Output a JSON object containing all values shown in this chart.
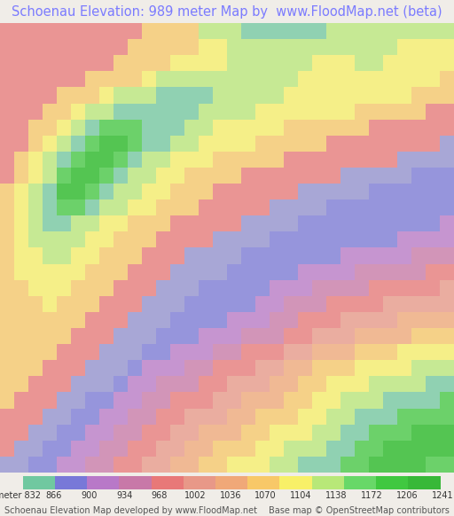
{
  "title": "Schoenau Elevation: 989 meter Map by  www.FloodMap.net (beta)",
  "title_color": "#7b7bff",
  "title_fontsize": 10.5,
  "bg_color": "#f0ede8",
  "colorbar_labels": [
    "meter 832",
    "866",
    "900",
    "934",
    "968",
    "1002",
    "1036",
    "1070",
    "1104",
    "1138",
    "1172",
    "1206",
    "1241"
  ],
  "colorbar_colors": [
    "#70c8a0",
    "#7878d8",
    "#b878c8",
    "#c878a8",
    "#e87878",
    "#e89888",
    "#f0a878",
    "#f8c868",
    "#f8f068",
    "#b8e878",
    "#68d868",
    "#40c840",
    "#38b838"
  ],
  "footer_left": "Schoenau Elevation Map developed by www.FloodMap.net",
  "footer_right": "Base map © OpenStreetMap contributors",
  "footer_fontsize": 7,
  "colorbar_label_fontsize": 7,
  "elevation_grid": [
    [
      4,
      4,
      4,
      4,
      4,
      4,
      4,
      4,
      4,
      4,
      7,
      7,
      7,
      7,
      9,
      9,
      9,
      10,
      10,
      10,
      10,
      10,
      10,
      9,
      9,
      9,
      9,
      9,
      9,
      9,
      9,
      9
    ],
    [
      4,
      4,
      4,
      4,
      4,
      4,
      4,
      4,
      4,
      7,
      7,
      7,
      7,
      7,
      8,
      8,
      9,
      9,
      9,
      9,
      9,
      9,
      9,
      9,
      9,
      9,
      9,
      9,
      8,
      8,
      8,
      8
    ],
    [
      4,
      4,
      4,
      4,
      4,
      4,
      4,
      4,
      7,
      7,
      7,
      7,
      8,
      8,
      8,
      8,
      9,
      9,
      9,
      9,
      9,
      9,
      8,
      8,
      8,
      9,
      9,
      8,
      8,
      8,
      8,
      8
    ],
    [
      4,
      4,
      4,
      4,
      4,
      4,
      7,
      7,
      7,
      7,
      8,
      9,
      9,
      9,
      9,
      9,
      9,
      9,
      9,
      9,
      9,
      8,
      8,
      8,
      8,
      8,
      8,
      8,
      8,
      8,
      8,
      7
    ],
    [
      4,
      4,
      4,
      4,
      7,
      7,
      7,
      8,
      9,
      9,
      9,
      10,
      10,
      10,
      10,
      9,
      9,
      9,
      9,
      9,
      8,
      8,
      8,
      8,
      8,
      8,
      8,
      8,
      8,
      7,
      7,
      7
    ],
    [
      4,
      4,
      4,
      7,
      7,
      8,
      9,
      9,
      10,
      10,
      10,
      10,
      10,
      10,
      9,
      9,
      9,
      9,
      8,
      8,
      8,
      8,
      8,
      8,
      8,
      7,
      7,
      7,
      7,
      7,
      4,
      4
    ],
    [
      4,
      4,
      7,
      7,
      8,
      9,
      10,
      11,
      11,
      11,
      10,
      10,
      10,
      9,
      9,
      8,
      8,
      8,
      8,
      8,
      7,
      7,
      7,
      7,
      7,
      7,
      4,
      4,
      4,
      4,
      4,
      4
    ],
    [
      4,
      4,
      7,
      8,
      9,
      10,
      11,
      12,
      12,
      11,
      10,
      10,
      9,
      9,
      8,
      8,
      8,
      8,
      7,
      7,
      7,
      7,
      7,
      4,
      4,
      4,
      4,
      4,
      4,
      4,
      4,
      1
    ],
    [
      4,
      7,
      8,
      9,
      10,
      11,
      12,
      12,
      11,
      10,
      9,
      9,
      8,
      8,
      8,
      7,
      7,
      7,
      7,
      7,
      4,
      4,
      4,
      4,
      4,
      4,
      4,
      4,
      1,
      1,
      1,
      1
    ],
    [
      4,
      7,
      8,
      9,
      11,
      12,
      12,
      11,
      10,
      9,
      9,
      8,
      8,
      7,
      7,
      7,
      7,
      4,
      4,
      4,
      4,
      4,
      4,
      4,
      1,
      1,
      1,
      1,
      1,
      0,
      0,
      0
    ],
    [
      7,
      8,
      9,
      10,
      12,
      12,
      11,
      10,
      9,
      9,
      8,
      8,
      7,
      7,
      7,
      4,
      4,
      4,
      4,
      4,
      4,
      1,
      1,
      1,
      1,
      1,
      0,
      0,
      0,
      0,
      0,
      0
    ],
    [
      7,
      8,
      9,
      10,
      11,
      11,
      10,
      9,
      9,
      8,
      8,
      7,
      7,
      7,
      4,
      4,
      4,
      4,
      4,
      1,
      1,
      1,
      1,
      0,
      0,
      0,
      0,
      0,
      0,
      0,
      0,
      0
    ],
    [
      7,
      8,
      9,
      10,
      10,
      9,
      9,
      8,
      8,
      7,
      7,
      7,
      4,
      4,
      4,
      4,
      4,
      1,
      1,
      1,
      1,
      0,
      0,
      0,
      0,
      0,
      0,
      0,
      0,
      0,
      0,
      2
    ],
    [
      7,
      8,
      9,
      9,
      9,
      9,
      8,
      8,
      7,
      7,
      7,
      4,
      4,
      4,
      4,
      1,
      1,
      1,
      1,
      0,
      0,
      0,
      0,
      0,
      0,
      0,
      0,
      0,
      2,
      2,
      2,
      2
    ],
    [
      7,
      8,
      8,
      9,
      9,
      8,
      8,
      7,
      7,
      7,
      4,
      4,
      4,
      1,
      1,
      1,
      1,
      0,
      0,
      0,
      0,
      0,
      0,
      0,
      2,
      2,
      2,
      2,
      2,
      3,
      3,
      3
    ],
    [
      7,
      8,
      8,
      8,
      8,
      8,
      7,
      7,
      7,
      4,
      4,
      4,
      1,
      1,
      1,
      1,
      0,
      0,
      0,
      0,
      0,
      2,
      2,
      2,
      2,
      3,
      3,
      3,
      3,
      3,
      4,
      4
    ],
    [
      7,
      7,
      8,
      8,
      8,
      7,
      7,
      7,
      4,
      4,
      4,
      1,
      1,
      1,
      0,
      0,
      0,
      0,
      0,
      2,
      2,
      2,
      3,
      3,
      3,
      3,
      4,
      4,
      4,
      4,
      4,
      5
    ],
    [
      7,
      7,
      7,
      8,
      7,
      7,
      7,
      4,
      4,
      4,
      1,
      1,
      1,
      0,
      0,
      0,
      0,
      0,
      2,
      2,
      3,
      3,
      3,
      4,
      4,
      4,
      4,
      5,
      5,
      5,
      5,
      5
    ],
    [
      7,
      7,
      7,
      7,
      7,
      7,
      4,
      4,
      4,
      1,
      1,
      1,
      0,
      0,
      0,
      0,
      2,
      2,
      2,
      3,
      3,
      4,
      4,
      4,
      5,
      5,
      5,
      5,
      6,
      6,
      6,
      6
    ],
    [
      7,
      7,
      7,
      7,
      7,
      4,
      4,
      4,
      1,
      1,
      1,
      0,
      0,
      0,
      2,
      2,
      2,
      3,
      3,
      3,
      4,
      4,
      5,
      5,
      5,
      6,
      6,
      6,
      6,
      7,
      7,
      7
    ],
    [
      7,
      7,
      7,
      7,
      4,
      4,
      4,
      1,
      1,
      1,
      0,
      0,
      2,
      2,
      2,
      3,
      3,
      4,
      4,
      4,
      5,
      5,
      6,
      6,
      6,
      7,
      7,
      7,
      8,
      8,
      8,
      8
    ],
    [
      7,
      7,
      7,
      4,
      4,
      4,
      1,
      1,
      1,
      0,
      2,
      2,
      2,
      3,
      3,
      4,
      4,
      4,
      5,
      5,
      6,
      6,
      7,
      7,
      7,
      8,
      8,
      8,
      8,
      9,
      9,
      9
    ],
    [
      7,
      7,
      4,
      4,
      4,
      1,
      1,
      1,
      0,
      2,
      2,
      3,
      3,
      3,
      4,
      4,
      5,
      5,
      5,
      6,
      6,
      7,
      7,
      8,
      8,
      8,
      9,
      9,
      9,
      9,
      10,
      10
    ],
    [
      7,
      4,
      4,
      4,
      1,
      1,
      0,
      0,
      2,
      2,
      3,
      3,
      4,
      4,
      4,
      5,
      5,
      6,
      6,
      6,
      7,
      7,
      8,
      8,
      9,
      9,
      9,
      10,
      10,
      10,
      10,
      11
    ],
    [
      4,
      4,
      4,
      1,
      1,
      0,
      0,
      2,
      2,
      3,
      3,
      4,
      4,
      5,
      5,
      5,
      6,
      6,
      7,
      7,
      7,
      8,
      8,
      9,
      9,
      10,
      10,
      10,
      11,
      11,
      11,
      11
    ],
    [
      4,
      4,
      1,
      1,
      0,
      0,
      2,
      2,
      3,
      3,
      4,
      4,
      5,
      5,
      6,
      6,
      6,
      7,
      7,
      8,
      8,
      8,
      9,
      9,
      10,
      10,
      11,
      11,
      11,
      12,
      12,
      12
    ],
    [
      4,
      1,
      1,
      0,
      0,
      2,
      2,
      3,
      3,
      4,
      4,
      5,
      5,
      6,
      6,
      7,
      7,
      7,
      8,
      8,
      9,
      9,
      9,
      10,
      10,
      11,
      11,
      12,
      12,
      12,
      12,
      12
    ],
    [
      1,
      1,
      0,
      0,
      2,
      2,
      3,
      3,
      4,
      4,
      5,
      5,
      6,
      6,
      7,
      7,
      8,
      8,
      8,
      9,
      9,
      10,
      10,
      10,
      11,
      11,
      12,
      12,
      12,
      12,
      11,
      11
    ]
  ],
  "color_map": {
    "0": "#7878d8",
    "1": "#9090d0",
    "2": "#b878c8",
    "3": "#c878a8",
    "4": "#e87878",
    "5": "#e89888",
    "6": "#f0a878",
    "7": "#f8c868",
    "8": "#f8f068",
    "9": "#b8e878",
    "10": "#70c8a0",
    "11": "#40c840",
    "12": "#20b820"
  }
}
